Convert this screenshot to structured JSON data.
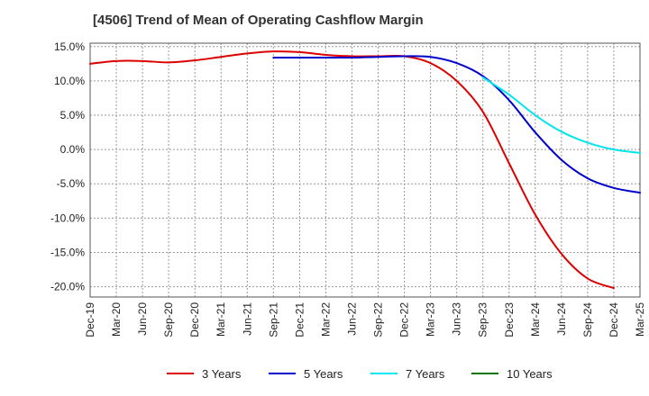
{
  "chart_data": {
    "type": "line",
    "title": "[4506]  Trend of Mean of Operating Cashflow Margin",
    "xlabel": "",
    "ylabel": "",
    "ylim": [
      -21.5,
      15.5
    ],
    "y_ticks": [
      15,
      10,
      5,
      0,
      -5,
      -10,
      -15,
      -20
    ],
    "y_tick_labels": [
      "15.0%",
      "10.0%",
      "5.0%",
      "0.0%",
      "-5.0%",
      "-10.0%",
      "-15.0%",
      "-20.0%"
    ],
    "x_tick_labels": [
      "Dec-19",
      "Mar-20",
      "Jun-20",
      "Sep-20",
      "Dec-20",
      "Mar-21",
      "Jun-21",
      "Sep-21",
      "Dec-21",
      "Mar-22",
      "Jun-22",
      "Sep-22",
      "Dec-22",
      "Mar-23",
      "Jun-23",
      "Sep-23",
      "Dec-23",
      "Mar-24",
      "Jun-24",
      "Sep-24",
      "Dec-24",
      "Mar-25"
    ],
    "grid": true,
    "legend_position": "bottom",
    "series": [
      {
        "name": "3 Years",
        "color": "#dd0000",
        "start_index": 0,
        "values": [
          12.5,
          12.9,
          12.9,
          12.7,
          13.0,
          13.5,
          14.0,
          14.3,
          14.2,
          13.8,
          13.6,
          13.6,
          13.6,
          12.6,
          10.0,
          5.5,
          -2.0,
          -9.5,
          -15.2,
          -18.8,
          -20.2
        ]
      },
      {
        "name": "5 Years",
        "color": "#0000cc",
        "start_index": 7,
        "values": [
          13.4,
          13.4,
          13.4,
          13.4,
          13.5,
          13.6,
          13.5,
          12.6,
          10.7,
          7.2,
          2.5,
          -1.5,
          -4.2,
          -5.6,
          -6.3
        ]
      },
      {
        "name": "7 Years",
        "color": "#00e5ee",
        "start_index": 15,
        "values": [
          10.5,
          8.0,
          5.0,
          2.6,
          1.0,
          0.0,
          -0.5
        ]
      },
      {
        "name": "10 Years",
        "color": "#007700",
        "start_index": 0,
        "values": []
      }
    ]
  }
}
